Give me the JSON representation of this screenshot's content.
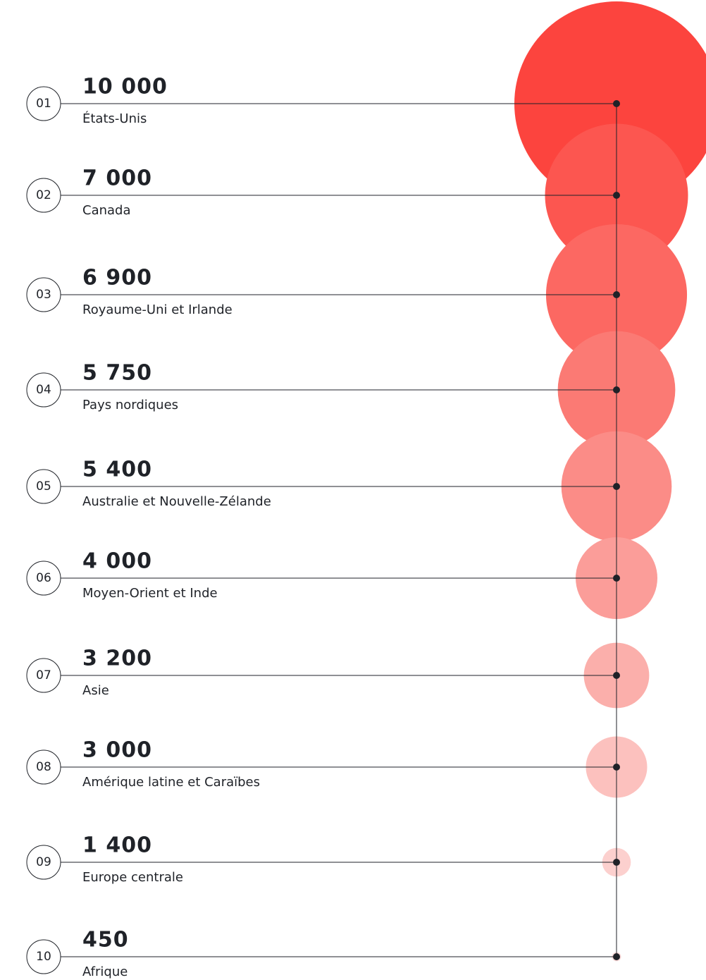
{
  "chart_data": {
    "type": "bubble",
    "ranks": [
      "01",
      "02",
      "03",
      "04",
      "05",
      "06",
      "07",
      "08",
      "09",
      "10"
    ],
    "categories": [
      "États-Unis",
      "Canada",
      "Royaume-Uni et Irlande",
      "Pays nordiques",
      "Australie et Nouvelle-Zélande",
      "Moyen-Orient et Inde",
      "Asie",
      "Amérique latine et Caraïbes",
      "Europe centrale",
      "Afrique"
    ],
    "values": [
      10000,
      7000,
      6900,
      5750,
      5400,
      4000,
      3200,
      3000,
      1400,
      450
    ],
    "value_labels": [
      "10 000",
      "7 000",
      "6 900",
      "5 750",
      "5 400",
      "4 000",
      "3 200",
      "3 000",
      "1 400",
      "450"
    ],
    "colors": [
      "#fc443e",
      "#fc5650",
      "#fc6862",
      "#fb7a74",
      "#fb8c87",
      "#fb9d99",
      "#fbafab",
      "#fcc1be",
      "#fcd0ce",
      "#fcdcdb"
    ]
  }
}
